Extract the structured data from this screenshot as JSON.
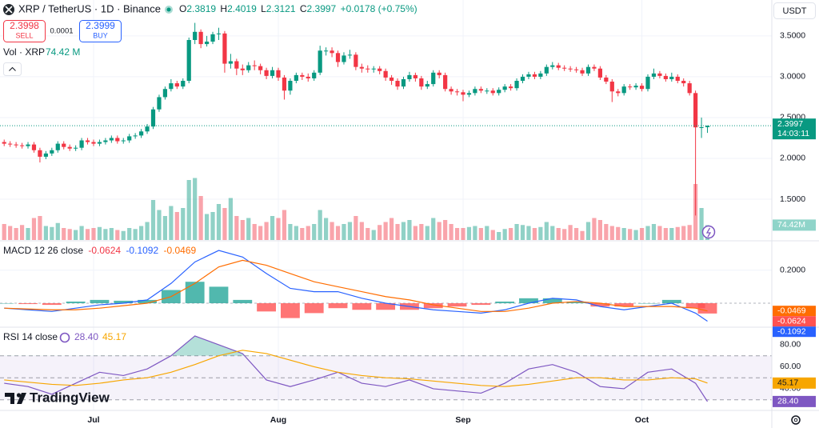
{
  "chart_data": {
    "type": "candlestick",
    "header": {
      "symbol": "XRP / TetherUS · 1D · Binance",
      "ohlc_labels": [
        "O",
        "H",
        "L",
        "C"
      ],
      "change": "+0.0178 (+0.75%)",
      "sell_price": 2.3998,
      "sell": "SELL",
      "spread": 0.0001,
      "buy_price": 2.3999,
      "buy": "BUY",
      "currency": "USDT",
      "vol_title": "Vol · XRP",
      "vol_value": "74.42 M",
      "price_timer": "14:03:11",
      "volume_badge": "74.42M",
      "brand": "TradingView"
    },
    "up_color": "#089981",
    "down_color": "#f23645",
    "xlim": [
      -0.7,
      128.8
    ],
    "xticks": [
      {
        "value": 15,
        "label": "Jul"
      },
      {
        "value": 46,
        "label": "Aug"
      },
      {
        "value": 77,
        "label": "Sep"
      },
      {
        "value": 107,
        "label": "Oct"
      }
    ],
    "ylim": [
      1.0,
      3.94
    ],
    "yticks": [
      {
        "value": 3.5,
        "label": "3.5000"
      },
      {
        "value": 3.0,
        "label": "3.0000"
      },
      {
        "value": 2.5,
        "label": "2.5000"
      },
      {
        "value": 2.0,
        "label": "2.0000"
      },
      {
        "value": 1.5,
        "label": "1.5000"
      }
    ],
    "grid": true,
    "open": [
      2.2,
      2.18,
      2.17,
      2.16,
      2.15,
      2.17,
      2.1,
      2.02,
      2.06,
      2.1,
      2.18,
      2.14,
      2.12,
      2.13,
      2.22,
      2.2,
      2.18,
      2.2,
      2.22,
      2.25,
      2.21,
      2.22,
      2.27,
      2.28,
      2.33,
      2.39,
      2.6,
      2.75,
      2.85,
      2.92,
      2.88,
      2.95,
      3.45,
      3.55,
      3.4,
      3.43,
      3.52,
      3.53,
      3.16,
      3.19,
      3.1,
      3.08,
      3.14,
      3.13,
      3.08,
      3.01,
      3.08,
      2.99,
      2.83,
      2.95,
      3.02,
      3.0,
      2.98,
      3.05,
      3.32,
      3.32,
      3.29,
      3.18,
      3.26,
      3.27,
      3.12,
      3.1,
      3.09,
      3.1,
      3.07,
      2.99,
      2.95,
      2.88,
      2.97,
      3.02,
      2.98,
      2.88,
      2.91,
      3.05,
      3.02,
      2.85,
      2.82,
      2.81,
      2.78,
      2.8,
      2.85,
      2.83,
      2.83,
      2.8,
      2.84,
      2.88,
      2.86,
      2.95,
      3.0,
      3.03,
      3.0,
      3.04,
      3.12,
      3.14,
      3.11,
      3.1,
      3.09,
      3.08,
      3.04,
      3.12,
      3.1,
      2.99,
      2.94,
      2.82,
      2.8,
      2.88,
      2.87,
      2.89,
      2.85,
      3.0,
      3.04,
      3.01,
      2.97,
      3.0,
      2.95,
      2.92,
      2.8,
      2.38,
      2.3819
    ],
    "high": [
      2.23,
      2.21,
      2.2,
      2.19,
      2.2,
      2.2,
      2.13,
      2.09,
      2.13,
      2.21,
      2.21,
      2.17,
      2.16,
      2.25,
      2.25,
      2.23,
      2.23,
      2.25,
      2.28,
      2.28,
      2.25,
      2.3,
      2.31,
      2.36,
      2.42,
      2.63,
      2.78,
      2.88,
      2.97,
      2.95,
      2.98,
      3.48,
      3.66,
      3.58,
      3.5,
      3.55,
      3.6,
      3.56,
      3.28,
      3.22,
      3.15,
      3.18,
      3.2,
      3.16,
      3.11,
      3.12,
      3.11,
      3.02,
      2.98,
      3.05,
      3.05,
      3.04,
      3.08,
      3.38,
      3.36,
      3.36,
      3.32,
      3.3,
      3.33,
      3.3,
      3.16,
      3.14,
      3.13,
      3.13,
      3.1,
      3.02,
      2.98,
      3.0,
      3.06,
      3.05,
      3.01,
      2.95,
      3.08,
      3.08,
      3.05,
      2.88,
      2.85,
      2.84,
      2.83,
      2.88,
      2.88,
      2.86,
      2.86,
      2.87,
      2.91,
      2.91,
      2.98,
      3.03,
      3.06,
      3.06,
      3.07,
      3.15,
      3.18,
      3.17,
      3.14,
      3.13,
      3.12,
      3.11,
      3.15,
      3.15,
      3.13,
      3.02,
      2.97,
      2.85,
      2.91,
      2.91,
      2.92,
      2.92,
      3.03,
      3.1,
      3.07,
      3.04,
      3.05,
      3.03,
      2.98,
      2.95,
      2.83,
      2.5,
      2.4019
    ],
    "low": [
      2.15,
      2.14,
      2.13,
      2.12,
      2.12,
      2.07,
      1.95,
      1.99,
      2.03,
      2.07,
      2.11,
      2.09,
      2.09,
      2.1,
      2.17,
      2.15,
      2.15,
      2.17,
      2.19,
      2.18,
      2.18,
      2.19,
      2.24,
      2.25,
      2.3,
      2.36,
      2.57,
      2.72,
      2.82,
      2.85,
      2.85,
      2.92,
      3.4,
      3.35,
      3.37,
      3.4,
      3.45,
      3.05,
      3.1,
      3.02,
      3.02,
      3.05,
      3.08,
      3.03,
      2.97,
      2.98,
      2.95,
      2.72,
      2.78,
      2.92,
      2.96,
      2.94,
      2.95,
      3.02,
      3.26,
      3.24,
      3.12,
      3.15,
      3.22,
      3.08,
      3.05,
      3.05,
      3.05,
      3.03,
      2.95,
      2.9,
      2.84,
      2.85,
      2.94,
      2.94,
      2.84,
      2.85,
      2.88,
      2.98,
      2.82,
      2.78,
      2.77,
      2.7,
      2.75,
      2.77,
      2.8,
      2.79,
      2.77,
      2.77,
      2.81,
      2.83,
      2.83,
      2.92,
      2.97,
      2.97,
      2.97,
      3.01,
      3.09,
      3.08,
      3.07,
      3.06,
      3.05,
      3.01,
      3.01,
      3.07,
      2.96,
      2.91,
      2.69,
      2.76,
      2.77,
      2.84,
      2.84,
      2.82,
      2.82,
      2.97,
      2.98,
      2.94,
      2.94,
      2.92,
      2.88,
      2.77,
      1.3,
      2.25,
      2.3121
    ],
    "close": [
      2.18,
      2.17,
      2.16,
      2.15,
      2.17,
      2.1,
      2.02,
      2.06,
      2.1,
      2.18,
      2.14,
      2.12,
      2.13,
      2.22,
      2.2,
      2.18,
      2.2,
      2.22,
      2.25,
      2.21,
      2.22,
      2.27,
      2.28,
      2.33,
      2.39,
      2.6,
      2.75,
      2.85,
      2.92,
      2.88,
      2.95,
      3.45,
      3.55,
      3.4,
      3.43,
      3.52,
      3.53,
      3.16,
      3.19,
      3.1,
      3.08,
      3.14,
      3.13,
      3.08,
      3.01,
      3.08,
      2.99,
      2.83,
      2.95,
      3.02,
      3.0,
      2.98,
      3.05,
      3.32,
      3.32,
      3.29,
      3.18,
      3.26,
      3.27,
      3.12,
      3.1,
      3.09,
      3.1,
      3.07,
      2.99,
      2.95,
      2.88,
      2.97,
      3.02,
      2.98,
      2.88,
      2.91,
      3.05,
      3.02,
      2.85,
      2.82,
      2.81,
      2.78,
      2.8,
      2.85,
      2.83,
      2.83,
      2.8,
      2.84,
      2.88,
      2.86,
      2.95,
      3.0,
      3.03,
      3.0,
      3.04,
      3.12,
      3.14,
      3.11,
      3.1,
      3.09,
      3.08,
      3.04,
      3.12,
      3.1,
      2.99,
      2.94,
      2.82,
      2.8,
      2.88,
      2.87,
      2.89,
      2.85,
      3.0,
      3.04,
      3.01,
      2.97,
      3.0,
      2.95,
      2.92,
      2.8,
      2.38,
      2.3819,
      2.3997
    ],
    "volume": [
      80,
      70,
      60,
      75,
      60,
      110,
      120,
      70,
      65,
      85,
      60,
      55,
      50,
      70,
      55,
      60,
      65,
      55,
      60,
      50,
      45,
      60,
      55,
      70,
      90,
      200,
      150,
      120,
      170,
      140,
      160,
      300,
      310,
      220,
      130,
      140,
      180,
      160,
      210,
      120,
      100,
      110,
      80,
      70,
      90,
      120,
      110,
      150,
      80,
      70,
      60,
      70,
      80,
      150,
      110,
      90,
      70,
      80,
      90,
      120,
      90,
      60,
      50,
      75,
      90,
      110,
      80,
      90,
      100,
      70,
      80,
      70,
      110,
      90,
      100,
      80,
      60,
      60,
      65,
      70,
      60,
      70,
      50,
      40,
      55,
      60,
      80,
      75,
      70,
      60,
      65,
      90,
      70,
      60,
      55,
      75,
      60,
      45,
      90,
      110,
      100,
      80,
      70,
      65,
      60,
      55,
      50,
      60,
      70,
      80,
      70,
      60,
      60,
      65,
      70,
      75,
      280,
      160,
      74.42
    ],
    "vlim": [
      0,
      400
    ],
    "macd": {
      "title": "MACD 12 26 close",
      "x": [
        0,
        4,
        8,
        12,
        16,
        20,
        24,
        28,
        32,
        36,
        40,
        44,
        48,
        52,
        56,
        60,
        64,
        68,
        72,
        76,
        80,
        84,
        88,
        92,
        96,
        100,
        104,
        108,
        112,
        116,
        118
      ],
      "ylim": [
        -0.126,
        0.359
      ],
      "yticks": [
        {
          "value": 0.2,
          "label": "0.2000"
        }
      ],
      "histogram": {
        "values": [
          0,
          -0.005,
          -0.01,
          0.01,
          0.02,
          0.015,
          0.02,
          0.08,
          0.13,
          0.1,
          0.02,
          -0.05,
          -0.09,
          -0.06,
          -0.03,
          -0.04,
          -0.04,
          -0.04,
          -0.03,
          -0.02,
          -0.01,
          0.01,
          0.03,
          0.03,
          0.01,
          -0.02,
          -0.02,
          0.0,
          0.02,
          -0.03,
          -0.0624
        ],
        "up_color": "#26a69a",
        "down_color": "#ff5252"
      },
      "series": [
        {
          "name": "MACD",
          "color": "#2962ff",
          "values": [
            -0.03,
            -0.04,
            -0.05,
            -0.03,
            -0.01,
            0.0,
            0.02,
            0.12,
            0.25,
            0.32,
            0.28,
            0.18,
            0.09,
            0.07,
            0.07,
            0.03,
            0.0,
            -0.02,
            -0.04,
            -0.05,
            -0.06,
            -0.04,
            0.0,
            0.03,
            0.02,
            -0.02,
            -0.04,
            -0.02,
            0.0,
            -0.06,
            -0.1092
          ]
        },
        {
          "name": "Signal",
          "color": "#ff6d00",
          "values": [
            -0.03,
            -0.035,
            -0.04,
            -0.04,
            -0.03,
            -0.015,
            0.0,
            0.04,
            0.12,
            0.22,
            0.26,
            0.23,
            0.18,
            0.13,
            0.1,
            0.07,
            0.04,
            0.02,
            -0.01,
            -0.03,
            -0.05,
            -0.05,
            -0.03,
            0.0,
            0.01,
            0.0,
            -0.02,
            -0.02,
            -0.02,
            -0.03,
            -0.0469
          ]
        }
      ]
    },
    "rsi": {
      "title": "RSI 14 close",
      "x": [
        0,
        4,
        8,
        12,
        16,
        20,
        24,
        28,
        32,
        36,
        40,
        44,
        48,
        52,
        56,
        60,
        64,
        68,
        72,
        76,
        80,
        84,
        88,
        92,
        96,
        100,
        104,
        108,
        112,
        116,
        118
      ],
      "ylim": [
        22.5,
        91.6
      ],
      "yticks": [
        {
          "value": 80,
          "label": "80.00"
        },
        {
          "value": 60,
          "label": "60.00"
        },
        {
          "value": 40,
          "label": "40.00"
        }
      ],
      "bands": [
        70,
        50,
        30
      ],
      "series": [
        {
          "name": "RSI",
          "color": "#7e57c2",
          "values": [
            45,
            42,
            35,
            45,
            55,
            52,
            58,
            70,
            88,
            80,
            72,
            48,
            42,
            48,
            55,
            45,
            42,
            48,
            40,
            38,
            36,
            45,
            58,
            62,
            55,
            42,
            40,
            55,
            58,
            45,
            28.4
          ],
          "last_label": "28.40"
        },
        {
          "name": "RSI-based MA",
          "color": "#f7a600",
          "values": [
            48,
            46,
            44,
            43,
            45,
            48,
            50,
            55,
            62,
            70,
            75,
            72,
            66,
            60,
            55,
            52,
            50,
            49,
            47,
            45,
            43,
            42,
            44,
            47,
            50,
            50,
            48,
            48,
            50,
            49,
            45.17
          ],
          "last_label": "45.17"
        }
      ]
    }
  }
}
